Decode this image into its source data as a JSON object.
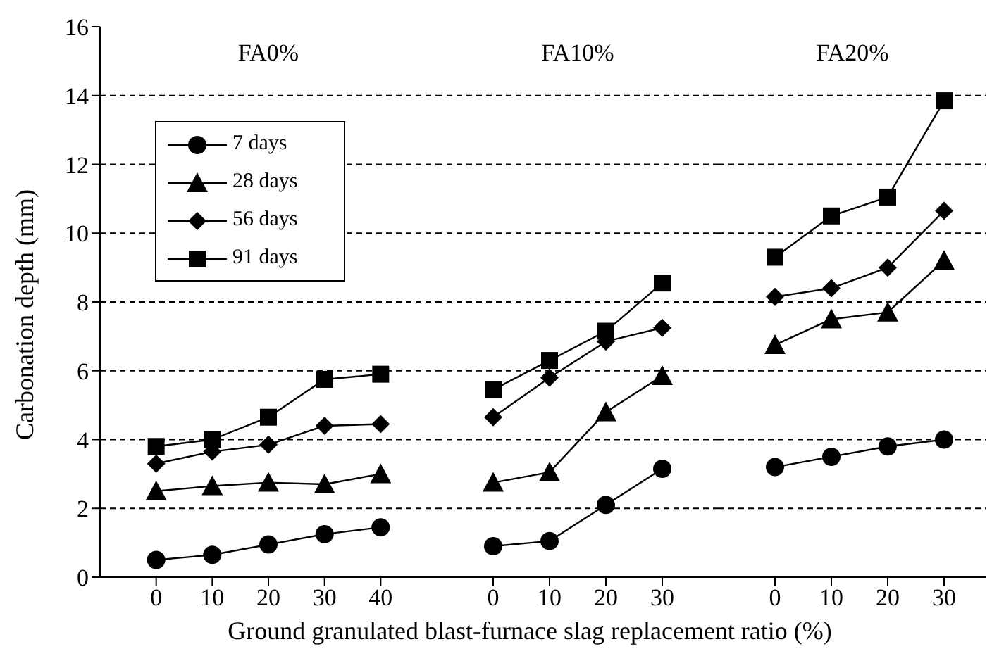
{
  "chart_data": [
    {
      "type": "line",
      "title": "FA0%",
      "ylabel": "Carbonation depth (mm)",
      "x": [
        0,
        10,
        20,
        30,
        40
      ],
      "xlim": [
        -10,
        50
      ],
      "xticks": [
        0,
        10,
        20,
        30,
        40
      ],
      "ylim": [
        0,
        16
      ],
      "yticks": [
        0,
        2,
        4,
        6,
        8,
        10,
        12,
        14,
        16
      ],
      "grid": "y",
      "legend": "top left",
      "series": [
        {
          "name": "7 days",
          "color": "#000000",
          "marker": "circle",
          "values": [
            0.5,
            0.65,
            0.95,
            1.25,
            1.45
          ]
        },
        {
          "name": "28 days",
          "color": "#000000",
          "marker": "triangle",
          "values": [
            2.5,
            2.65,
            2.75,
            2.7,
            3.0
          ]
        },
        {
          "name": "56 days",
          "color": "#000000",
          "marker": "diamond",
          "values": [
            3.3,
            3.65,
            3.85,
            4.4,
            4.45
          ]
        },
        {
          "name": "91 days",
          "color": "#000000",
          "marker": "square",
          "values": [
            3.8,
            4.0,
            4.65,
            5.75,
            5.9
          ]
        }
      ]
    },
    {
      "type": "line",
      "title": "FA10%",
      "xlabel": "Ground granulated blast-furnace slag replacement ratio (%)",
      "x": [
        0,
        10,
        20,
        30
      ],
      "xlim": [
        -10,
        40
      ],
      "xticks": [
        0,
        10,
        20,
        30
      ],
      "ylim": [
        0,
        16
      ],
      "yticks": [
        0,
        2,
        4,
        6,
        8,
        10,
        12,
        14,
        16
      ],
      "grid": "y",
      "tick_labels": "x",
      "series": [
        {
          "color": "#000000",
          "marker": "circle",
          "values": [
            0.9,
            1.05,
            2.1,
            3.15
          ]
        },
        {
          "color": "#000000",
          "marker": "triangle",
          "values": [
            2.75,
            3.05,
            4.8,
            5.85
          ]
        },
        {
          "color": "#000000",
          "marker": "diamond",
          "values": [
            4.65,
            5.8,
            6.85,
            7.25
          ]
        },
        {
          "color": "#000000",
          "marker": "square",
          "values": [
            5.45,
            6.3,
            7.15,
            8.55
          ]
        }
      ]
    },
    {
      "type": "line",
      "title": "FA20%",
      "x": [
        0,
        10,
        20,
        30
      ],
      "xlim": [
        -10,
        37.5
      ],
      "xticks": [
        0,
        10,
        20,
        30
      ],
      "ylim": [
        0,
        16
      ],
      "yticks": [
        0,
        2,
        4,
        6,
        8,
        10,
        12,
        14,
        16
      ],
      "grid": "y",
      "tick_labels": "x",
      "series": [
        {
          "color": "#000000",
          "marker": "circle",
          "values": [
            3.2,
            3.5,
            3.8,
            4.0
          ]
        },
        {
          "color": "#000000",
          "marker": "triangle",
          "values": [
            6.75,
            7.5,
            7.7,
            9.2
          ]
        },
        {
          "color": "#000000",
          "marker": "diamond",
          "values": [
            8.15,
            8.4,
            9.0,
            10.65
          ]
        },
        {
          "color": "#000000",
          "marker": "square",
          "values": [
            9.3,
            10.5,
            11.05,
            13.85
          ]
        }
      ]
    }
  ]
}
